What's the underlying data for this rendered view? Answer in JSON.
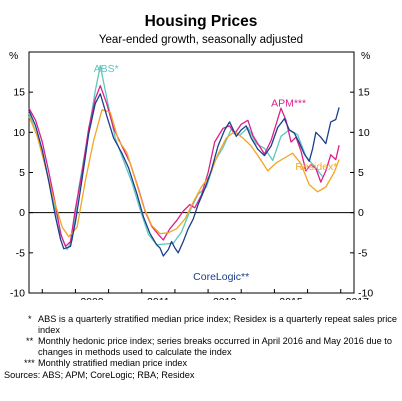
{
  "chart_data": {
    "type": "line",
    "title": "Housing Prices",
    "subtitle": "Year-ended growth, seasonally adjusted",
    "ylabel_left": "%",
    "ylabel_right": "%",
    "ylim": [
      -10,
      20
    ],
    "yticks": [
      -10,
      -5,
      0,
      5,
      10,
      15
    ],
    "xlim": [
      2007.6,
      2017.4
    ],
    "xticks": [
      "2009",
      "2011",
      "2013",
      "2015",
      "2017"
    ],
    "grid": false,
    "zero_line": true,
    "series": [
      {
        "name": "ABS*",
        "color": "#5ec7c0",
        "points": [
          [
            2007.6,
            12.4
          ],
          [
            2007.85,
            9.5
          ],
          [
            2008.1,
            5.8
          ],
          [
            2008.35,
            1.2
          ],
          [
            2008.6,
            -3.2
          ],
          [
            2008.75,
            -4.6
          ],
          [
            2008.9,
            -3.4
          ],
          [
            2009.1,
            3.0
          ],
          [
            2009.35,
            9.0
          ],
          [
            2009.6,
            15.2
          ],
          [
            2009.75,
            18.3
          ],
          [
            2009.95,
            14.2
          ],
          [
            2010.2,
            9.3
          ],
          [
            2010.45,
            6.5
          ],
          [
            2010.7,
            3.8
          ],
          [
            2010.95,
            0.4
          ],
          [
            2011.2,
            -2.7
          ],
          [
            2011.45,
            -4.0
          ],
          [
            2011.7,
            -3.9
          ],
          [
            2011.95,
            -3.8
          ],
          [
            2012.2,
            -2.4
          ],
          [
            2012.45,
            0.2
          ],
          [
            2012.7,
            2.3
          ],
          [
            2012.95,
            3.2
          ],
          [
            2013.2,
            6.4
          ],
          [
            2013.45,
            8.1
          ],
          [
            2013.7,
            10.4
          ],
          [
            2013.95,
            9.6
          ],
          [
            2014.2,
            10.6
          ],
          [
            2014.45,
            8.6
          ],
          [
            2014.7,
            8.0
          ],
          [
            2014.95,
            6.5
          ],
          [
            2015.2,
            9.5
          ],
          [
            2015.45,
            10.3
          ],
          [
            2015.7,
            9.7
          ],
          [
            2015.95,
            7.0
          ],
          [
            2016.2,
            5.8
          ],
          [
            2016.45,
            4.5
          ]
        ]
      },
      {
        "name": "APM***",
        "color": "#d8218b",
        "points": [
          [
            2007.6,
            13.0
          ],
          [
            2007.8,
            11.5
          ],
          [
            2008.0,
            8.8
          ],
          [
            2008.2,
            5.0
          ],
          [
            2008.4,
            1.0
          ],
          [
            2008.55,
            -2.6
          ],
          [
            2008.7,
            -4.2
          ],
          [
            2008.85,
            -3.6
          ],
          [
            2009.0,
            0.5
          ],
          [
            2009.2,
            5.0
          ],
          [
            2009.4,
            10.5
          ],
          [
            2009.6,
            14.2
          ],
          [
            2009.75,
            15.8
          ],
          [
            2009.95,
            13.5
          ],
          [
            2010.15,
            10.5
          ],
          [
            2010.4,
            8.3
          ],
          [
            2010.65,
            6.2
          ],
          [
            2010.9,
            3.0
          ],
          [
            2011.1,
            0.2
          ],
          [
            2011.3,
            -1.7
          ],
          [
            2011.5,
            -2.7
          ],
          [
            2011.65,
            -3.4
          ],
          [
            2011.85,
            -2.0
          ],
          [
            2012.05,
            -1.0
          ],
          [
            2012.25,
            0.2
          ],
          [
            2012.45,
            1.0
          ],
          [
            2012.6,
            0.6
          ],
          [
            2012.8,
            2.2
          ],
          [
            2013.0,
            5.0
          ],
          [
            2013.2,
            8.8
          ],
          [
            2013.45,
            10.5
          ],
          [
            2013.65,
            10.8
          ],
          [
            2013.8,
            9.8
          ],
          [
            2014.0,
            11.0
          ],
          [
            2014.2,
            11.5
          ],
          [
            2014.35,
            9.6
          ],
          [
            2014.5,
            8.6
          ],
          [
            2014.7,
            7.3
          ],
          [
            2014.9,
            9.0
          ],
          [
            2015.05,
            11.0
          ],
          [
            2015.2,
            13.0
          ],
          [
            2015.35,
            11.5
          ],
          [
            2015.5,
            8.8
          ],
          [
            2015.65,
            9.4
          ],
          [
            2015.8,
            7.7
          ],
          [
            2015.95,
            5.2
          ],
          [
            2016.1,
            6.0
          ],
          [
            2016.25,
            5.5
          ],
          [
            2016.4,
            3.8
          ],
          [
            2016.55,
            5.2
          ],
          [
            2016.7,
            7.2
          ],
          [
            2016.85,
            6.6
          ],
          [
            2016.95,
            8.4
          ]
        ]
      },
      {
        "name": "Residex*",
        "color": "#f4a525",
        "points": [
          [
            2007.6,
            12.0
          ],
          [
            2007.85,
            9.5
          ],
          [
            2008.1,
            5.6
          ],
          [
            2008.35,
            1.6
          ],
          [
            2008.6,
            -1.8
          ],
          [
            2008.8,
            -3.0
          ],
          [
            2009.05,
            -1.8
          ],
          [
            2009.3,
            4.0
          ],
          [
            2009.55,
            9.0
          ],
          [
            2009.8,
            12.8
          ],
          [
            2010.05,
            12.5
          ],
          [
            2010.3,
            9.0
          ],
          [
            2010.55,
            7.5
          ],
          [
            2010.8,
            4.2
          ],
          [
            2011.05,
            0.8
          ],
          [
            2011.3,
            -1.6
          ],
          [
            2011.55,
            -2.6
          ],
          [
            2011.8,
            -2.5
          ],
          [
            2012.05,
            -2.0
          ],
          [
            2012.3,
            -0.8
          ],
          [
            2012.55,
            1.3
          ],
          [
            2012.8,
            3.2
          ],
          [
            2013.05,
            4.6
          ],
          [
            2013.3,
            7.3
          ],
          [
            2013.55,
            9.3
          ],
          [
            2013.8,
            10.1
          ],
          [
            2014.05,
            9.3
          ],
          [
            2014.3,
            8.3
          ],
          [
            2014.55,
            6.8
          ],
          [
            2014.8,
            5.2
          ],
          [
            2015.05,
            6.2
          ],
          [
            2015.3,
            6.8
          ],
          [
            2015.55,
            7.4
          ],
          [
            2015.8,
            6.1
          ],
          [
            2016.05,
            3.5
          ],
          [
            2016.3,
            2.6
          ],
          [
            2016.55,
            3.2
          ],
          [
            2016.8,
            5.0
          ],
          [
            2016.95,
            6.6
          ]
        ]
      },
      {
        "name": "CoreLogic**",
        "color": "#1b3f8b",
        "points": [
          [
            2007.6,
            12.7
          ],
          [
            2007.8,
            10.8
          ],
          [
            2008.0,
            7.8
          ],
          [
            2008.2,
            3.8
          ],
          [
            2008.4,
            -0.5
          ],
          [
            2008.55,
            -3.3
          ],
          [
            2008.65,
            -4.5
          ],
          [
            2008.85,
            -4.2
          ],
          [
            2009.0,
            -1.2
          ],
          [
            2009.2,
            4.2
          ],
          [
            2009.4,
            9.8
          ],
          [
            2009.6,
            13.6
          ],
          [
            2009.75,
            14.8
          ],
          [
            2009.95,
            12.0
          ],
          [
            2010.15,
            9.3
          ],
          [
            2010.4,
            7.4
          ],
          [
            2010.6,
            5.6
          ],
          [
            2010.85,
            2.4
          ],
          [
            2011.05,
            -0.5
          ],
          [
            2011.25,
            -2.6
          ],
          [
            2011.45,
            -4.0
          ],
          [
            2011.55,
            -4.4
          ],
          [
            2011.65,
            -5.4
          ],
          [
            2011.8,
            -4.6
          ],
          [
            2011.9,
            -3.6
          ],
          [
            2012.0,
            -4.4
          ],
          [
            2012.1,
            -5.0
          ],
          [
            2012.25,
            -3.6
          ],
          [
            2012.4,
            -2.0
          ],
          [
            2012.55,
            -0.8
          ],
          [
            2012.7,
            1.0
          ],
          [
            2012.9,
            3.0
          ],
          [
            2013.1,
            5.3
          ],
          [
            2013.3,
            8.3
          ],
          [
            2013.5,
            10.3
          ],
          [
            2013.65,
            11.3
          ],
          [
            2013.85,
            9.5
          ],
          [
            2014.0,
            10.3
          ],
          [
            2014.15,
            10.8
          ],
          [
            2014.3,
            9.3
          ],
          [
            2014.5,
            7.9
          ],
          [
            2014.7,
            7.1
          ],
          [
            2014.9,
            8.3
          ],
          [
            2015.1,
            10.6
          ],
          [
            2015.3,
            11.7
          ],
          [
            2015.45,
            10.3
          ],
          [
            2015.6,
            9.9
          ],
          [
            2015.75,
            8.7
          ],
          [
            2015.9,
            7.3
          ],
          [
            2016.05,
            6.4
          ],
          [
            2016.15,
            7.9
          ],
          [
            2016.25,
            10.0
          ],
          [
            2016.4,
            9.4
          ],
          [
            2016.55,
            8.6
          ],
          [
            2016.7,
            11.3
          ],
          [
            2016.85,
            11.6
          ],
          [
            2016.95,
            13.1
          ]
        ]
      }
    ],
    "series_label_colors": {
      "ABS*": "#5ec7c0",
      "APM***": "#d8218b",
      "Residex*": "#f4a525",
      "CoreLogic**": "#1b3f8b"
    }
  },
  "notes": [
    {
      "mark": "*",
      "text": "ABS is a quarterly stratified median price index; Residex is a quarterly repeat sales price index"
    },
    {
      "mark": "**",
      "text": "Monthly hedonic price index; series breaks occurred in April 2016 and May 2016 due to changes in methods used to calculate the index"
    },
    {
      "mark": "***",
      "text": "Monthly stratified median price index"
    }
  ],
  "sources": "Sources: ABS; APM; CoreLogic; RBA; Residex"
}
